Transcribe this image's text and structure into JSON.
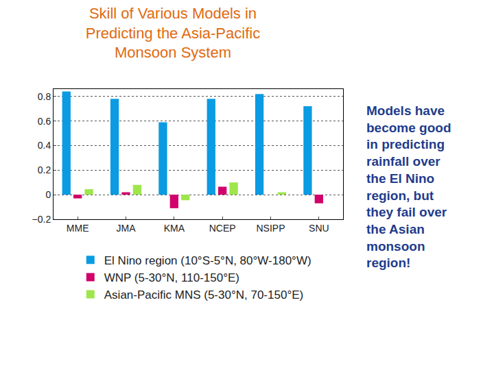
{
  "chart_data": {
    "type": "bar",
    "title": [
      "Skill of Various Models in",
      "Predicting the Asia-Pacific",
      "Monsoon System"
    ],
    "categories": [
      "MME",
      "JMA",
      "KMA",
      "NCEP",
      "NSIPP",
      "SNU"
    ],
    "series": [
      {
        "name": "El Nino region (10°S-5°N, 80°W-180°W)",
        "color": "#0a9be3",
        "values": [
          0.84,
          0.78,
          0.59,
          0.78,
          0.82,
          0.72
        ]
      },
      {
        "name": "WNP (5-30°N, 110-150°E)",
        "color": "#d1006a",
        "values": [
          -0.03,
          0.02,
          -0.11,
          0.065,
          0.0,
          -0.07
        ]
      },
      {
        "name": "Asian-Pacific MNS (5-30°N, 70-150°E)",
        "color": "#9ee64c",
        "values": [
          0.045,
          0.08,
          -0.045,
          0.1,
          0.02,
          0.0
        ]
      }
    ],
    "ylim": [
      -0.2,
      0.86
    ],
    "yticks": [
      {
        "value": -0.2,
        "label": "−0.2"
      },
      0,
      0.2,
      0.4,
      0.6,
      0.8
    ],
    "grid": true,
    "legend": "below",
    "annotation": [
      "Models have",
      "become good",
      "in predicting",
      "rainfall over",
      "the El Nino",
      "region, but",
      "they fail over",
      "the Asian",
      "monsoon",
      "region!"
    ]
  }
}
